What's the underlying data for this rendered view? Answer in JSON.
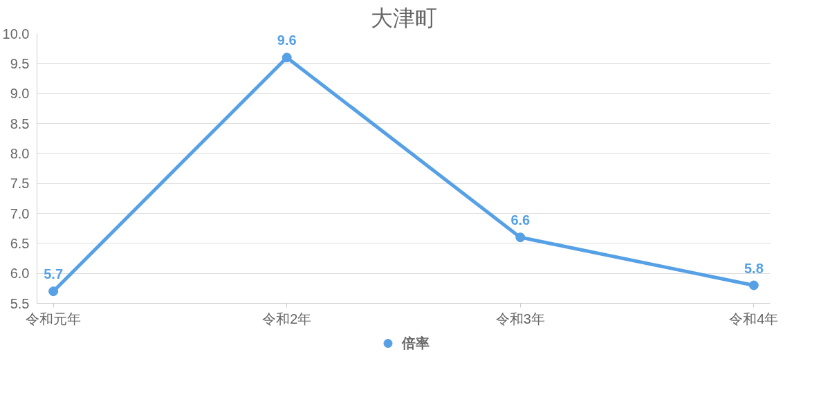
{
  "chart_data": {
    "type": "line",
    "title": "大津町",
    "categories": [
      "令和元年",
      "令和2年",
      "令和3年",
      "令和4年"
    ],
    "series": [
      {
        "name": "倍率",
        "color": "#56a0e5",
        "values": [
          5.7,
          9.6,
          6.6,
          5.8
        ]
      }
    ],
    "ylim": [
      5.5,
      10.0
    ],
    "yticks": [
      {
        "value": 5.5,
        "label": "5.5"
      },
      {
        "value": 6.0,
        "label": "6.0"
      },
      {
        "value": 6.5,
        "label": "6.5"
      },
      {
        "value": 7.0,
        "label": "7.0"
      },
      {
        "value": 7.5,
        "label": "7.5"
      },
      {
        "value": 8.0,
        "label": "8.0"
      },
      {
        "value": 8.5,
        "label": "8.5"
      },
      {
        "value": 9.0,
        "label": "9.0"
      },
      {
        "value": 9.5,
        "label": "9.5"
      },
      {
        "value": 10.0,
        "label": "10.0"
      }
    ],
    "grid": "y",
    "legend": "bottom",
    "marker": "circle",
    "line_style": "solid",
    "data_labels": true
  }
}
